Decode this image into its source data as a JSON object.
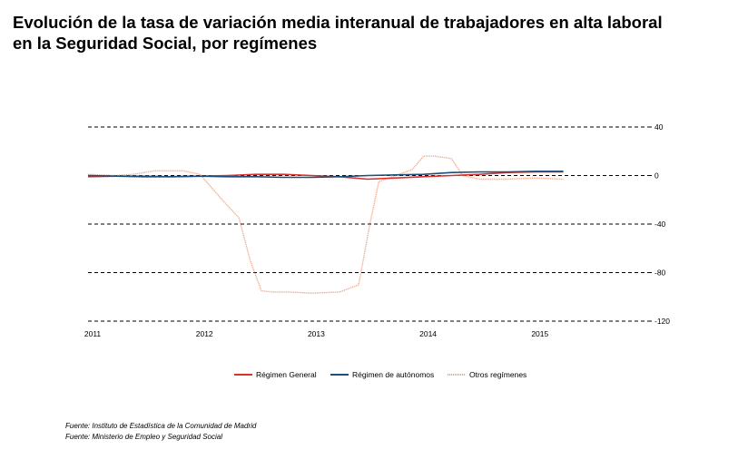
{
  "title_lines": [
    "Evolución de la tasa de variación media interanual de trabajadores en alta laboral",
    "en la Seguridad Social, por  regímenes"
  ],
  "sources": [
    "Fuente: Instituto de Estadística de la Comunidad de Madrid",
    "Fuente: Ministerio de Empleo y Seguridad Social"
  ],
  "colors": {
    "general": "#d9322a",
    "autonomos": "#1f4e79",
    "otros": "#f2a88c",
    "grid": "#000000"
  },
  "chart_data": {
    "type": "line",
    "title": "",
    "xlabel": "",
    "ylabel": "",
    "x_ticks": [
      2011,
      2012,
      2013,
      2014,
      2015
    ],
    "y_ticks": [
      40,
      0,
      -40,
      -80,
      -120
    ],
    "ylim": [
      -120,
      40
    ],
    "xlim": [
      2011,
      2016
    ],
    "y_axis_position": "right",
    "grid": "horizontal-dashed",
    "legend_position": "bottom",
    "series": [
      {
        "name": "Régimen General",
        "key": "general",
        "x": [
          2011.0,
          2011.25,
          2011.5,
          2011.75,
          2012.0,
          2012.25,
          2012.5,
          2012.75,
          2013.0,
          2013.25,
          2013.5,
          2013.75,
          2014.0,
          2014.25,
          2014.5,
          2014.75,
          2015.0,
          2015.25
        ],
        "values": [
          -1,
          -0.5,
          -0.5,
          -1,
          -0.5,
          0,
          1,
          1,
          0,
          -1,
          -3,
          -2,
          -1,
          0,
          1,
          2.5,
          3,
          3
        ]
      },
      {
        "name": "Régimen de autónomos",
        "key": "autonomos",
        "x": [
          2011.0,
          2011.25,
          2011.5,
          2011.75,
          2012.0,
          2012.25,
          2012.5,
          2012.75,
          2013.0,
          2013.25,
          2013.5,
          2013.75,
          2014.0,
          2014.25,
          2014.5,
          2014.75,
          2015.0,
          2015.25
        ],
        "values": [
          0,
          -0.5,
          -1,
          -1,
          -0.5,
          -1,
          -1,
          -1.5,
          -1.5,
          -1,
          0,
          0.5,
          1,
          2.5,
          3,
          3,
          3.5,
          3.5
        ]
      },
      {
        "name": "Otros regímenes",
        "key": "otros",
        "x": [
          2011.0,
          2011.25,
          2011.4,
          2011.6,
          2011.85,
          2012.0,
          2012.2,
          2012.35,
          2012.45,
          2012.55,
          2012.65,
          2012.8,
          2013.0,
          2013.25,
          2013.42,
          2013.52,
          2013.6,
          2013.75,
          2013.9,
          2014.0,
          2014.1,
          2014.25,
          2014.35,
          2014.5,
          2014.75,
          2015.0,
          2015.25
        ],
        "values": [
          1,
          0,
          1,
          4,
          4,
          1,
          -20,
          -35,
          -70,
          -95,
          -96,
          -96,
          -97,
          -96,
          -90,
          -40,
          -5,
          0,
          5,
          16,
          16,
          14,
          0,
          -3,
          -3,
          -2,
          -3
        ]
      }
    ]
  }
}
